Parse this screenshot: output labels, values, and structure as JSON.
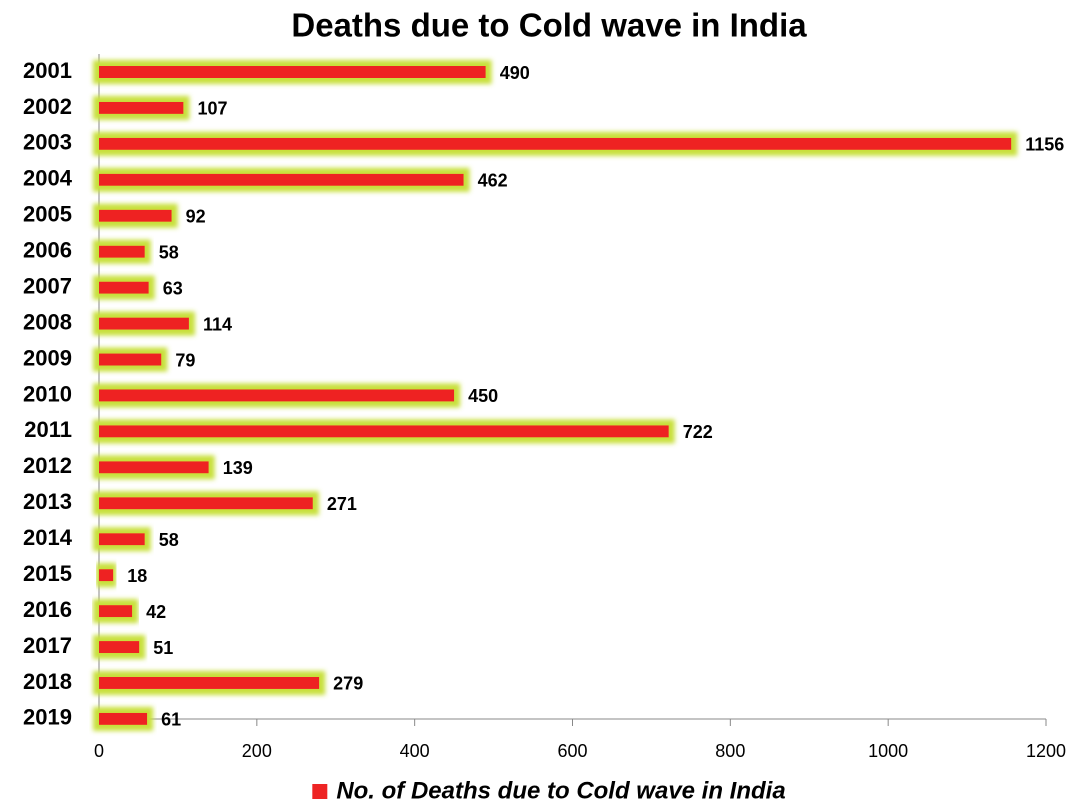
{
  "chart_data": {
    "type": "bar",
    "orientation": "horizontal",
    "title": "Deaths due to Cold wave in India",
    "categories": [
      "2001",
      "2002",
      "2003",
      "2004",
      "2005",
      "2006",
      "2007",
      "2008",
      "2009",
      "2010",
      "2011",
      "2012",
      "2013",
      "2014",
      "2015",
      "2016",
      "2017",
      "2018",
      "2019"
    ],
    "series": [
      {
        "name": "No. of Deaths due to Cold wave in India",
        "color": "#ee2424",
        "values": [
          490,
          107,
          1156,
          462,
          92,
          58,
          63,
          114,
          79,
          450,
          722,
          139,
          271,
          58,
          18,
          42,
          51,
          279,
          61
        ]
      }
    ],
    "glow_color": "#c8e03c",
    "xlim": [
      0,
      1200
    ],
    "xticks": [
      0,
      200,
      400,
      600,
      800,
      1000,
      1200
    ],
    "legend": "bottom"
  }
}
